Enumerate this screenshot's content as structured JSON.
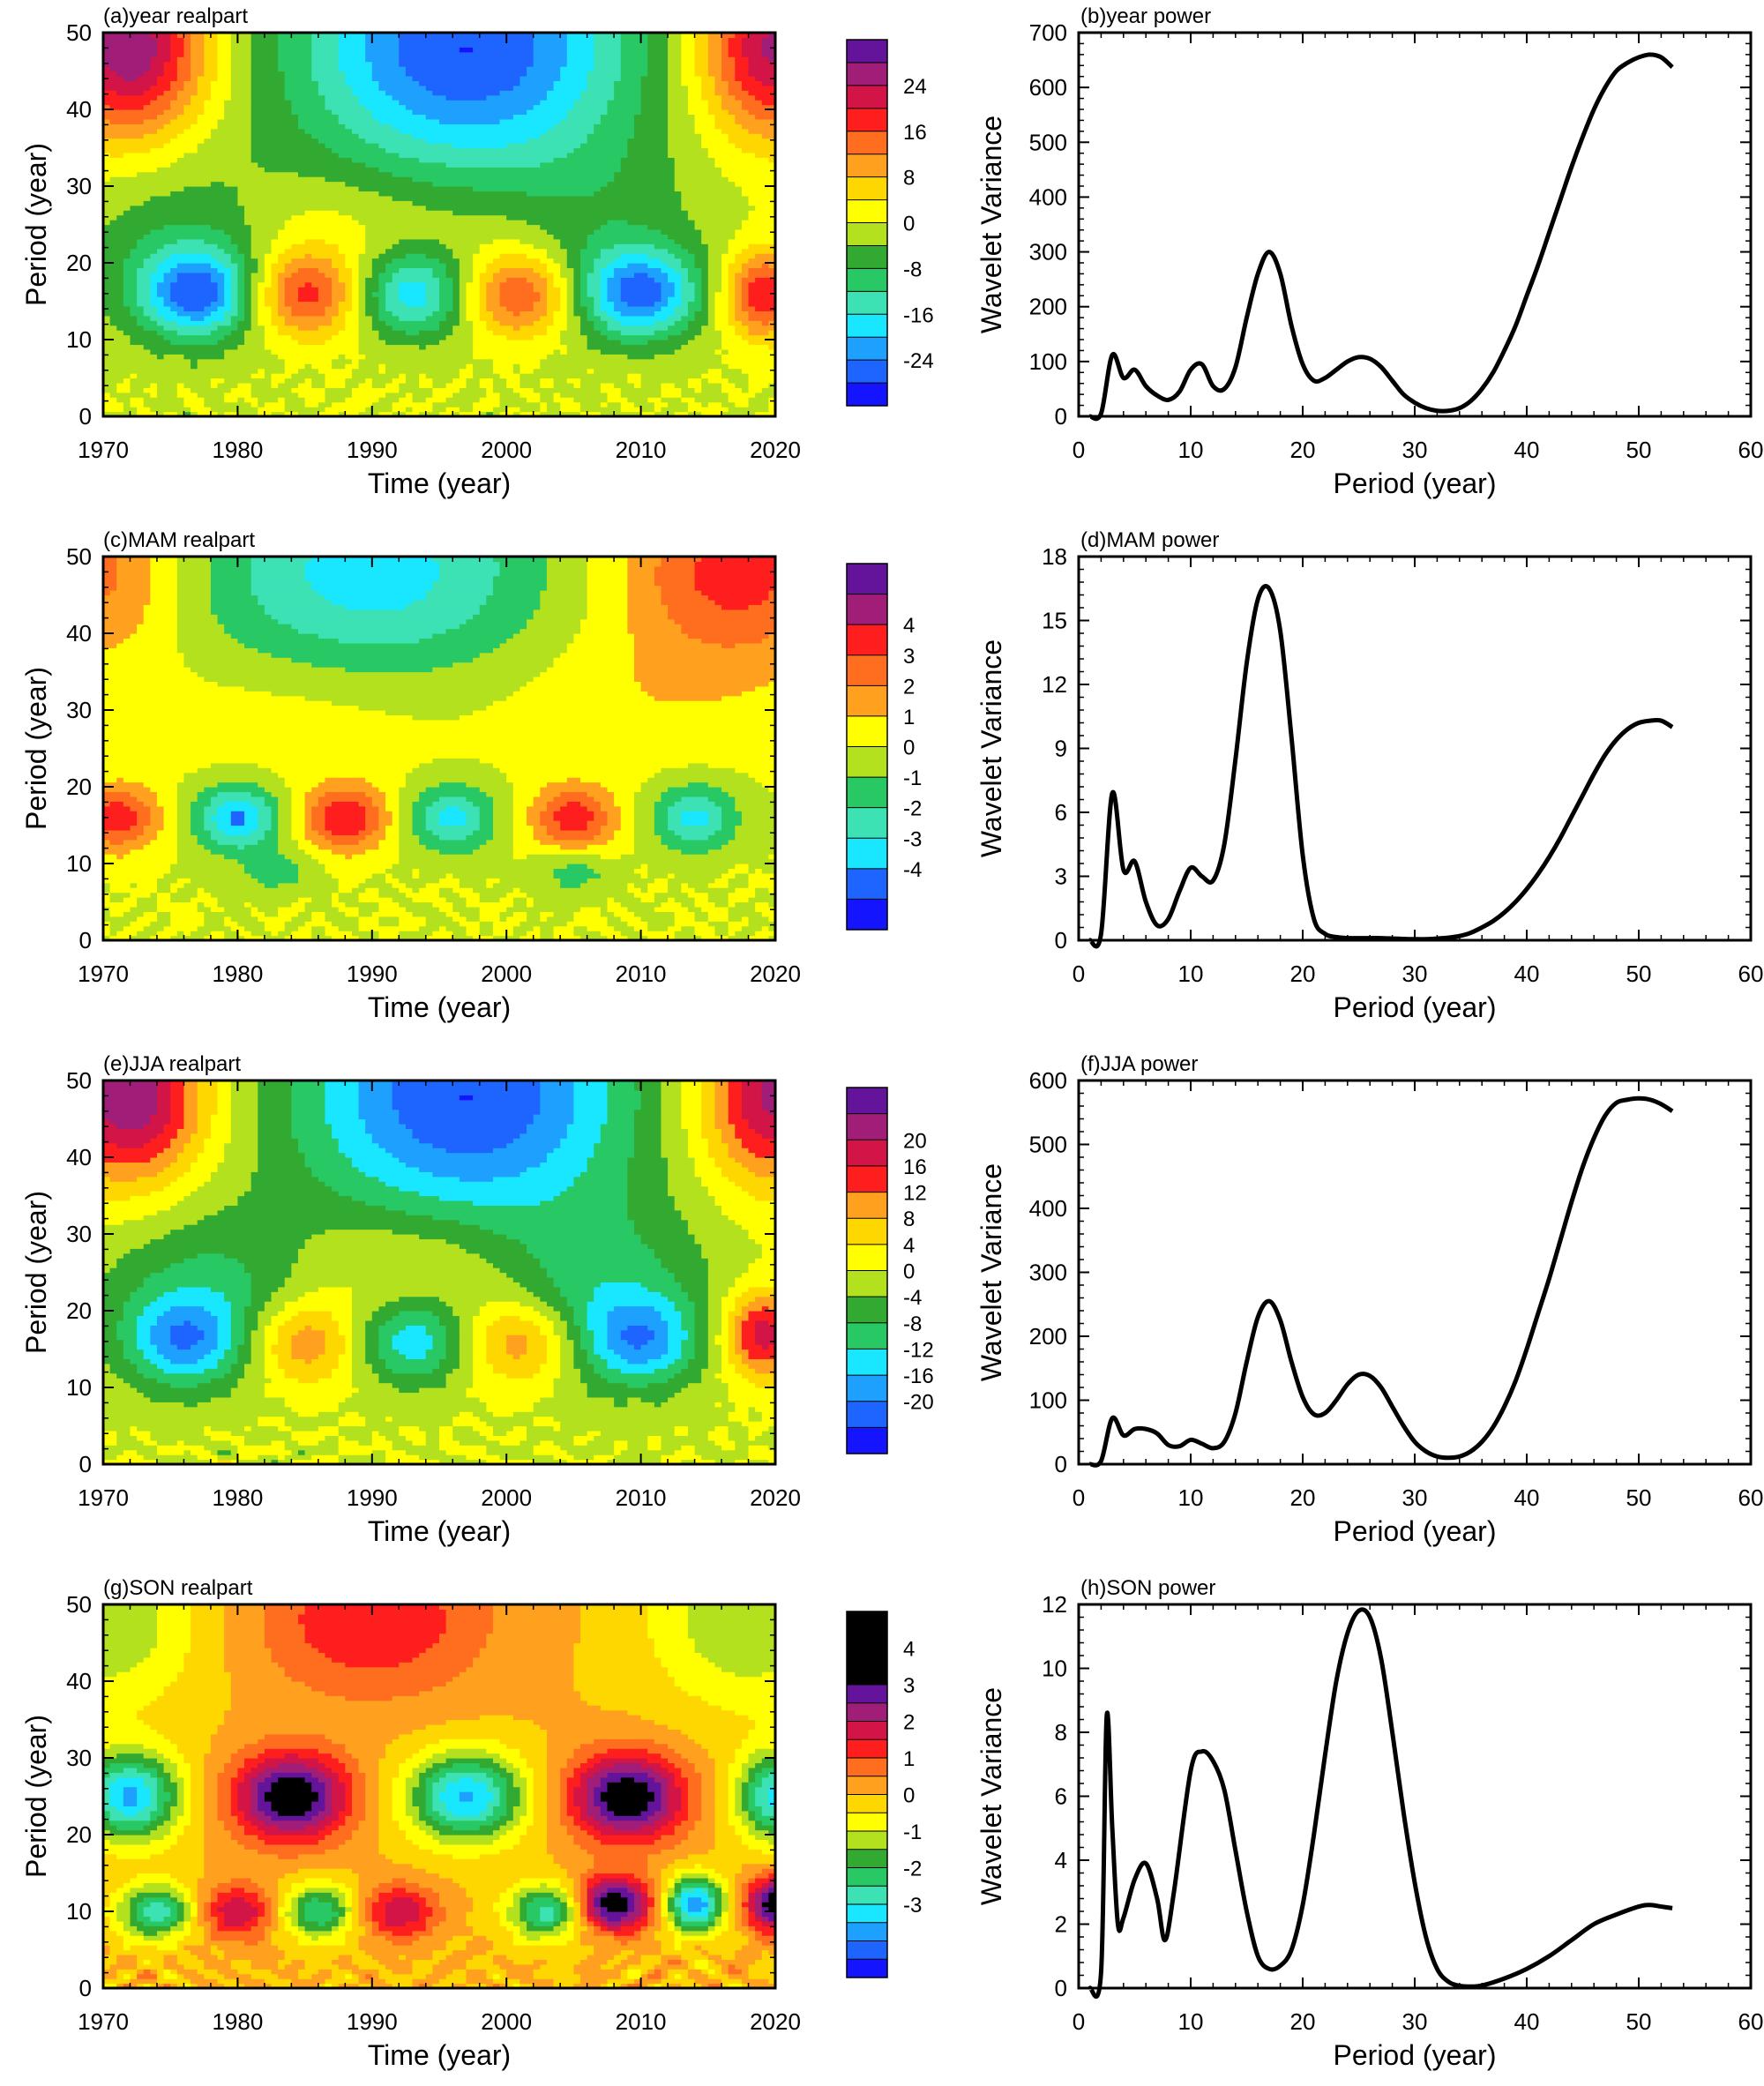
{
  "figure": "wavelet analysis panels",
  "chart_data": [
    {
      "id": "a",
      "type": "heatmap",
      "title": "(a)year realpart",
      "xlabel": "Time (year)",
      "ylabel": "Period (year)",
      "xlim": [
        1970,
        2020
      ],
      "ylim": [
        0,
        50
      ],
      "xticks": [
        1970,
        1980,
        1990,
        2000,
        2010,
        2020
      ],
      "yticks": [
        0,
        10,
        20,
        30,
        40,
        50
      ],
      "colorbar": {
        "levels": [
          -28,
          -24,
          -20,
          -16,
          -12,
          -8,
          -4,
          0,
          4,
          8,
          12,
          16,
          20,
          24,
          28
        ],
        "tick_labels": [
          "24",
          "16",
          "8",
          "0",
          "-8",
          "-16",
          "-24"
        ],
        "tick_values": [
          24,
          16,
          8,
          0,
          -8,
          -16,
          -24
        ]
      },
      "features": [
        {
          "t": 1972,
          "p": 48,
          "v": 28,
          "st": 4,
          "sp": 8
        },
        {
          "t": 1997,
          "p": 48,
          "v": -28,
          "st": 9,
          "sp": 12
        },
        {
          "t": 2020,
          "p": 48,
          "v": 26,
          "st": 4,
          "sp": 8
        },
        {
          "t": 1985,
          "p": 25,
          "v": 5,
          "st": 6,
          "sp": 5
        },
        {
          "t": 2002,
          "p": 25,
          "v": 5,
          "st": 6,
          "sp": 5
        },
        {
          "t": 1977,
          "p": 22,
          "v": -9,
          "st": 6,
          "sp": 8
        },
        {
          "t": 2006,
          "p": 22,
          "v": -9,
          "st": 6,
          "sp": 8
        },
        {
          "t": 1977,
          "p": 16,
          "v": -22,
          "st": 3,
          "sp": 4
        },
        {
          "t": 1985,
          "p": 16,
          "v": 20,
          "st": 3,
          "sp": 4
        },
        {
          "t": 1993,
          "p": 16,
          "v": -18,
          "st": 3,
          "sp": 4
        },
        {
          "t": 2001,
          "p": 16,
          "v": 20,
          "st": 3,
          "sp": 4
        },
        {
          "t": 2010,
          "p": 16,
          "v": -22,
          "st": 3,
          "sp": 4
        },
        {
          "t": 2019,
          "p": 16,
          "v": 20,
          "st": 2,
          "sp": 4
        }
      ]
    },
    {
      "id": "b",
      "type": "line",
      "title": "(b)year power",
      "xlabel": "Period (year)",
      "ylabel": "Wavelet Variance",
      "xlim": [
        0,
        60
      ],
      "ylim": [
        0,
        700
      ],
      "xticks": [
        0,
        10,
        20,
        30,
        40,
        50,
        60
      ],
      "yticks": [
        0,
        100,
        200,
        300,
        400,
        500,
        600,
        700
      ],
      "x": [
        1,
        2,
        3,
        4,
        5,
        6,
        7,
        8,
        9,
        10,
        11,
        12,
        13,
        14,
        15,
        16,
        17,
        18,
        19,
        20,
        21,
        22,
        23,
        24,
        25,
        26,
        27,
        28,
        29,
        30,
        31,
        32,
        33,
        34,
        35,
        36,
        37,
        38,
        39,
        40,
        41,
        42,
        43,
        44,
        45,
        46,
        47,
        48,
        49,
        50,
        51,
        52,
        53
      ],
      "y": [
        0,
        5,
        112,
        70,
        85,
        55,
        38,
        30,
        45,
        85,
        95,
        55,
        50,
        90,
        180,
        260,
        300,
        260,
        165,
        95,
        65,
        70,
        85,
        100,
        108,
        105,
        90,
        65,
        40,
        25,
        15,
        10,
        10,
        15,
        28,
        50,
        80,
        120,
        165,
        220,
        275,
        335,
        395,
        455,
        510,
        560,
        600,
        630,
        645,
        655,
        660,
        655,
        637
      ]
    },
    {
      "id": "c",
      "type": "heatmap",
      "title": "(c)MAM realpart",
      "xlabel": "Time (year)",
      "ylabel": "Period (year)",
      "xlim": [
        1970,
        2020
      ],
      "ylim": [
        0,
        50
      ],
      "xticks": [
        1970,
        1980,
        1990,
        2000,
        2010,
        2020
      ],
      "yticks": [
        0,
        10,
        20,
        30,
        40,
        50
      ],
      "colorbar": {
        "levels": [
          -5,
          -4,
          -3,
          -2,
          -1,
          0,
          1,
          2,
          3,
          4,
          5
        ],
        "tick_labels": [
          "4",
          "3",
          "2",
          "1",
          "0",
          "-1",
          "-2",
          "-3",
          "-4"
        ],
        "tick_values": [
          4,
          3,
          2,
          1,
          0,
          -1,
          -2,
          -3,
          -4
        ]
      },
      "features": [
        {
          "t": 1970,
          "p": 48,
          "v": 2.5,
          "st": 4,
          "sp": 8
        },
        {
          "t": 1990,
          "p": 48,
          "v": -3.5,
          "st": 9,
          "sp": 10
        },
        {
          "t": 2017,
          "p": 48,
          "v": 3.5,
          "st": 6,
          "sp": 8
        },
        {
          "t": 1985,
          "p": 30,
          "v": 0.8,
          "st": 8,
          "sp": 6
        },
        {
          "t": 2010,
          "p": 32,
          "v": 0.8,
          "st": 8,
          "sp": 6
        },
        {
          "t": 1971,
          "p": 16,
          "v": 3.7,
          "st": 2.2,
          "sp": 3
        },
        {
          "t": 1980,
          "p": 16,
          "v": -4.2,
          "st": 2.2,
          "sp": 3
        },
        {
          "t": 1988,
          "p": 16,
          "v": 4.0,
          "st": 2.2,
          "sp": 3
        },
        {
          "t": 1996,
          "p": 16,
          "v": -3.3,
          "st": 2.2,
          "sp": 3
        },
        {
          "t": 2005,
          "p": 16,
          "v": 3.6,
          "st": 2.2,
          "sp": 3
        },
        {
          "t": 2014,
          "p": 16,
          "v": -3.3,
          "st": 2.2,
          "sp": 3
        },
        {
          "t": 1983,
          "p": 9,
          "v": -1.5,
          "st": 2,
          "sp": 2
        },
        {
          "t": 2005,
          "p": 9,
          "v": -1.6,
          "st": 2,
          "sp": 2
        }
      ]
    },
    {
      "id": "d",
      "type": "line",
      "title": "(d)MAM power",
      "xlabel": "Period (year)",
      "ylabel": "Wavelet Variance",
      "xlim": [
        0,
        60
      ],
      "ylim": [
        0,
        18
      ],
      "xticks": [
        0,
        10,
        20,
        30,
        40,
        50,
        60
      ],
      "yticks": [
        0,
        3,
        6,
        9,
        12,
        15,
        18
      ],
      "x": [
        1,
        2,
        3,
        4,
        5,
        6,
        7,
        8,
        9,
        10,
        11,
        12,
        13,
        14,
        15,
        16,
        17,
        18,
        19,
        20,
        21,
        22,
        23,
        24,
        25,
        26,
        27,
        28,
        29,
        30,
        31,
        32,
        33,
        34,
        35,
        36,
        37,
        38,
        39,
        40,
        41,
        42,
        43,
        44,
        45,
        46,
        47,
        48,
        49,
        50,
        51,
        52,
        53
      ],
      "y": [
        0,
        0.3,
        6.9,
        3.3,
        3.7,
        1.8,
        0.7,
        1.0,
        2.3,
        3.4,
        3.0,
        2.8,
        4.5,
        8.5,
        13.0,
        16.0,
        16.5,
        14.5,
        9.5,
        4.0,
        1.0,
        0.3,
        0.15,
        0.1,
        0.1,
        0.1,
        0.1,
        0.08,
        0.06,
        0.05,
        0.05,
        0.08,
        0.12,
        0.2,
        0.35,
        0.6,
        0.9,
        1.3,
        1.8,
        2.4,
        3.1,
        3.9,
        4.8,
        5.8,
        6.8,
        7.8,
        8.7,
        9.4,
        9.9,
        10.2,
        10.3,
        10.3,
        10.0
      ]
    },
    {
      "id": "e",
      "type": "heatmap",
      "title": "(e)JJA realpart",
      "xlabel": "Time (year)",
      "ylabel": "Period (year)",
      "xlim": [
        1970,
        2020
      ],
      "ylim": [
        0,
        50
      ],
      "xticks": [
        1970,
        1980,
        1990,
        2000,
        2010,
        2020
      ],
      "yticks": [
        0,
        10,
        20,
        30,
        40,
        50
      ],
      "colorbar": {
        "levels": [
          -24,
          -20,
          -16,
          -12,
          -8,
          -4,
          0,
          4,
          8,
          12,
          16,
          20,
          24
        ],
        "tick_labels": [
          "20",
          "16",
          "12",
          "8",
          "4",
          "0",
          "-4",
          "-8",
          "-12",
          "-16",
          "-20"
        ],
        "tick_values": [
          20,
          16,
          12,
          8,
          4,
          0,
          -4,
          -8,
          -12,
          -16,
          -20
        ]
      },
      "features": [
        {
          "t": 1972,
          "p": 48,
          "v": 24,
          "st": 4,
          "sp": 8
        },
        {
          "t": 1997,
          "p": 48,
          "v": -24,
          "st": 9,
          "sp": 12
        },
        {
          "t": 2020,
          "p": 48,
          "v": 22,
          "st": 4,
          "sp": 8
        },
        {
          "t": 1993,
          "p": 26,
          "v": 5,
          "st": 7,
          "sp": 5
        },
        {
          "t": 1978,
          "p": 22,
          "v": -10,
          "st": 6,
          "sp": 8
        },
        {
          "t": 2007,
          "p": 22,
          "v": -10,
          "st": 6,
          "sp": 8
        },
        {
          "t": 1976,
          "p": 16,
          "v": -14,
          "st": 3,
          "sp": 4
        },
        {
          "t": 1985,
          "p": 16,
          "v": 14,
          "st": 3,
          "sp": 4
        },
        {
          "t": 1993,
          "p": 16,
          "v": -14,
          "st": 3,
          "sp": 4
        },
        {
          "t": 2001,
          "p": 16,
          "v": 14,
          "st": 3,
          "sp": 4
        },
        {
          "t": 2010,
          "p": 16,
          "v": -14,
          "st": 3,
          "sp": 4
        },
        {
          "t": 2019,
          "p": 17,
          "v": 19,
          "st": 2,
          "sp": 4
        }
      ]
    },
    {
      "id": "f",
      "type": "line",
      "title": "(f)JJA power",
      "xlabel": "Period (year)",
      "ylabel": "Wavelet Variance",
      "xlim": [
        0,
        60
      ],
      "ylim": [
        0,
        600
      ],
      "xticks": [
        0,
        10,
        20,
        30,
        40,
        50,
        60
      ],
      "yticks": [
        0,
        100,
        200,
        300,
        400,
        500,
        600
      ],
      "x": [
        1,
        2,
        3,
        4,
        5,
        6,
        7,
        8,
        9,
        10,
        11,
        12,
        13,
        14,
        15,
        16,
        17,
        18,
        19,
        20,
        21,
        22,
        23,
        24,
        25,
        26,
        27,
        28,
        29,
        30,
        31,
        32,
        33,
        34,
        35,
        36,
        37,
        38,
        39,
        40,
        41,
        42,
        43,
        44,
        45,
        46,
        47,
        48,
        49,
        50,
        51,
        52,
        53
      ],
      "y": [
        0,
        5,
        72,
        45,
        55,
        55,
        48,
        30,
        28,
        38,
        32,
        25,
        35,
        80,
        160,
        230,
        255,
        225,
        160,
        105,
        78,
        80,
        100,
        125,
        140,
        138,
        120,
        90,
        60,
        35,
        20,
        12,
        10,
        12,
        20,
        35,
        58,
        90,
        130,
        180,
        235,
        290,
        350,
        410,
        465,
        510,
        545,
        565,
        570,
        572,
        570,
        563,
        552
      ]
    },
    {
      "id": "g",
      "type": "heatmap",
      "title": "(g)SON realpart",
      "xlabel": "Time (year)",
      "ylabel": "Period (year)",
      "xlim": [
        1970,
        2020
      ],
      "ylim": [
        0,
        50
      ],
      "xticks": [
        1970,
        1980,
        1990,
        2000,
        2010,
        2020
      ],
      "yticks": [
        0,
        10,
        20,
        30,
        40,
        50
      ],
      "colorbar": {
        "levels": [
          -4.5,
          -4,
          -3.5,
          -3,
          -2.5,
          -2,
          -1.5,
          -1,
          -0.5,
          0,
          0.5,
          1,
          1.5,
          2,
          2.5,
          3,
          3.5,
          4,
          4.5
        ],
        "tick_labels": [
          "4",
          "3",
          "2",
          "1",
          "0",
          "-1",
          "-2",
          "-3"
        ],
        "tick_values": [
          4,
          3,
          2,
          1,
          0,
          -1,
          -2,
          -3
        ]
      },
      "features": [
        {
          "t": 1970,
          "p": 48,
          "v": -1.5,
          "st": 5,
          "sp": 8
        },
        {
          "t": 1990,
          "p": 48,
          "v": 1.5,
          "st": 6,
          "sp": 7
        },
        {
          "t": 2018,
          "p": 48,
          "v": -1.5,
          "st": 5,
          "sp": 8
        },
        {
          "t": 1972,
          "p": 25,
          "v": -3.6,
          "st": 2.6,
          "sp": 4
        },
        {
          "t": 1984,
          "p": 25,
          "v": 3.6,
          "st": 3,
          "sp": 4
        },
        {
          "t": 1997,
          "p": 25,
          "v": -3.6,
          "st": 3,
          "sp": 4
        },
        {
          "t": 2009,
          "p": 25,
          "v": 3.6,
          "st": 3,
          "sp": 4
        },
        {
          "t": 2020,
          "p": 25,
          "v": -3.2,
          "st": 2,
          "sp": 4
        },
        {
          "t": 1974,
          "p": 10,
          "v": -2.8,
          "st": 2,
          "sp": 2.5
        },
        {
          "t": 1980,
          "p": 10,
          "v": 2.0,
          "st": 2,
          "sp": 2.5
        },
        {
          "t": 1986,
          "p": 10,
          "v": -2.5,
          "st": 2,
          "sp": 2.5
        },
        {
          "t": 1992,
          "p": 10,
          "v": 2.0,
          "st": 2,
          "sp": 2.5
        },
        {
          "t": 2003,
          "p": 10,
          "v": -2.8,
          "st": 2,
          "sp": 2.5
        },
        {
          "t": 2008,
          "p": 11,
          "v": 3.6,
          "st": 2,
          "sp": 2.5
        },
        {
          "t": 2014,
          "p": 11,
          "v": -4.0,
          "st": 1.5,
          "sp": 2.5
        },
        {
          "t": 2020,
          "p": 11,
          "v": 3.5,
          "st": 1.5,
          "sp": 2.5
        }
      ]
    },
    {
      "id": "h",
      "type": "line",
      "title": "(h)SON power",
      "xlabel": "Period (year)",
      "ylabel": "Wavelet Variance",
      "xlim": [
        0,
        60
      ],
      "ylim": [
        0,
        12
      ],
      "xticks": [
        0,
        10,
        20,
        30,
        40,
        50,
        60
      ],
      "yticks": [
        0,
        2,
        4,
        6,
        8,
        10,
        12
      ],
      "x": [
        1,
        2,
        2.5,
        3,
        3.5,
        4,
        5,
        6,
        7,
        7.7,
        8.5,
        10,
        11,
        12,
        13,
        14,
        15,
        16,
        17,
        18,
        19,
        20,
        21,
        22,
        23,
        24,
        25,
        26,
        27,
        28,
        29,
        30,
        31,
        32,
        33,
        34,
        35,
        36,
        38,
        40,
        42,
        44,
        46,
        48,
        50,
        51,
        52,
        53
      ],
      "y": [
        0,
        0.5,
        8.5,
        5.0,
        2.0,
        2.2,
        3.4,
        3.9,
        2.8,
        1.5,
        3.0,
        6.8,
        7.4,
        7.1,
        6.2,
        4.3,
        2.4,
        1.0,
        0.6,
        0.7,
        1.2,
        2.6,
        4.8,
        7.3,
        9.6,
        11.1,
        11.8,
        11.6,
        10.3,
        8.0,
        5.5,
        3.3,
        1.6,
        0.6,
        0.2,
        0.07,
        0.05,
        0.08,
        0.3,
        0.6,
        1.0,
        1.5,
        2.0,
        2.3,
        2.55,
        2.6,
        2.55,
        2.5
      ]
    }
  ]
}
